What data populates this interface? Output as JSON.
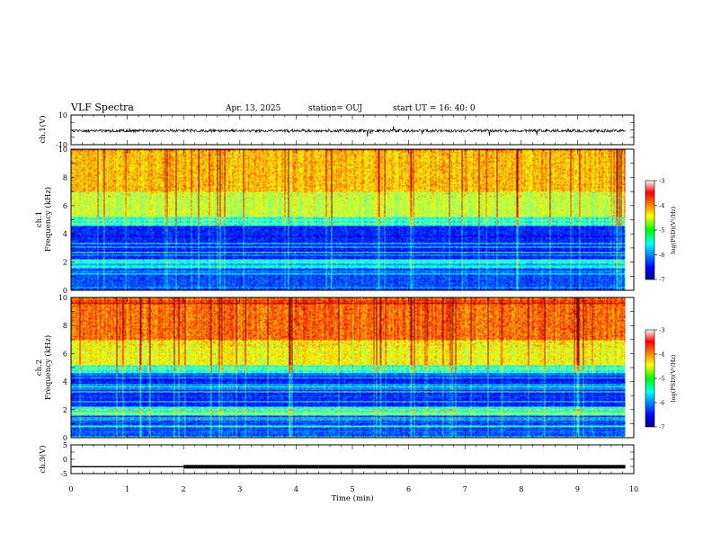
{
  "header": {
    "title": "VLF Spectra",
    "date": "Apr. 13, 2025",
    "station": "station= OUJ",
    "start": "start  UT =   16: 40: 0"
  },
  "chart_data": [
    {
      "type": "line",
      "panel": "ch1-waveform",
      "ylabel": "ch.1(V)",
      "ylim": [
        -10,
        10
      ],
      "yticks": [
        "10",
        "-10"
      ],
      "xlim": [
        0,
        10
      ],
      "signal_end": 9.85,
      "baseline": 0
    },
    {
      "type": "heatmap",
      "panel": "ch1-spectrogram",
      "ylabel": "ch.1\nFrequency (kHz)",
      "ylim": [
        0,
        10
      ],
      "yticks": [
        "0",
        "2",
        "4",
        "6",
        "8",
        "10"
      ],
      "xlim": [
        0,
        10
      ],
      "data_end": 9.85,
      "colorbar": {
        "label": "log(PSD)(V²/Hz)",
        "range": [
          -7,
          -3
        ],
        "ticks": [
          "-3",
          "-4",
          "-5",
          "-6",
          "-7"
        ]
      }
    },
    {
      "type": "heatmap",
      "panel": "ch2-spectrogram",
      "ylabel": "ch.2\nFrequency (kHz)",
      "ylim": [
        0,
        10
      ],
      "yticks": [
        "0",
        "2",
        "4",
        "6",
        "8",
        "10"
      ],
      "xlim": [
        0,
        10
      ],
      "data_end": 9.85,
      "colorbar": {
        "label": "log(PSD)(V²/Hz)",
        "range": [
          -7,
          -3
        ],
        "ticks": [
          "-3",
          "-4",
          "-5",
          "-6",
          "-7"
        ]
      }
    },
    {
      "type": "line",
      "panel": "ch3-level",
      "ylabel": "ch.3(V)",
      "ylim": [
        -5,
        5
      ],
      "yticks": [
        "5",
        "0",
        "-5"
      ],
      "xlim": [
        0,
        10
      ],
      "xlabel": "Time (min)",
      "xticks": [
        "0",
        "1",
        "2",
        "3",
        "4",
        "5",
        "6",
        "7",
        "8",
        "9",
        "10"
      ],
      "step_at": 2.0,
      "signal_end": 9.85,
      "value": -2.6
    }
  ]
}
